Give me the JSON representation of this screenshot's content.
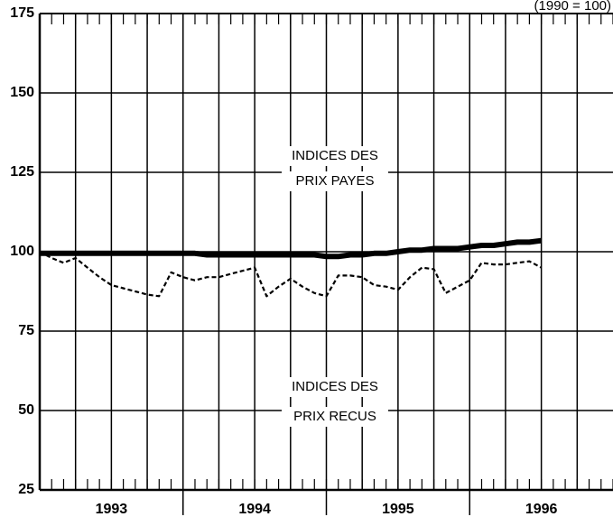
{
  "chart_data": {
    "type": "line",
    "note": "(1990 = 100)",
    "categories": [
      "1993",
      "1994",
      "1995",
      "1996"
    ],
    "x": [
      1993.0,
      1993.083,
      1993.167,
      1993.25,
      1993.333,
      1993.417,
      1993.5,
      1993.583,
      1993.667,
      1993.75,
      1993.833,
      1993.917,
      1994.0,
      1994.083,
      1994.167,
      1994.25,
      1994.333,
      1994.417,
      1994.5,
      1994.583,
      1994.667,
      1994.75,
      1994.833,
      1994.917,
      1995.0,
      1995.083,
      1995.167,
      1995.25,
      1995.333,
      1995.417,
      1995.5,
      1995.583,
      1995.667,
      1995.75,
      1995.833,
      1995.917,
      1996.0,
      1996.083,
      1996.167,
      1996.25,
      1996.333,
      1996.417,
      1996.5
    ],
    "series": [
      {
        "name": "PRIX PAYES",
        "label_lines": [
          "INDICES DES",
          "PRIX PAYES"
        ],
        "color": "#000000",
        "style": "solid",
        "values": [
          99.5,
          99.5,
          99.5,
          99.5,
          99.5,
          99.5,
          99.5,
          99.5,
          99.5,
          99.5,
          99.5,
          99.5,
          99.5,
          99.5,
          99,
          99,
          99,
          99,
          99,
          99,
          99,
          99,
          99,
          99,
          98.5,
          98.5,
          99,
          99,
          99.5,
          99.5,
          100,
          100.5,
          100.5,
          101,
          101,
          101,
          101.5,
          102,
          102,
          102.5,
          103,
          103,
          103.5
        ]
      },
      {
        "name": "PRIX RECUS",
        "label_lines": [
          "INDICES DES",
          "PRIX RECUS"
        ],
        "color": "#000000",
        "style": "dashed",
        "values": [
          100,
          98,
          96.5,
          98,
          95,
          92,
          89.5,
          88.5,
          87.5,
          86.5,
          86,
          93.5,
          92,
          91,
          92,
          92,
          93,
          94,
          95,
          86,
          89,
          91.5,
          89,
          87,
          86,
          92.5,
          92.5,
          92,
          89.5,
          89,
          88,
          92,
          95,
          94.5,
          87,
          89,
          91,
          96.5,
          96,
          96,
          96.5,
          97,
          95
        ]
      }
    ],
    "xlim": [
      1993,
      1997
    ],
    "xticks": [
      1993.25,
      1993.5,
      1993.75,
      1994,
      1994.25,
      1994.5,
      1994.75,
      1995,
      1995.25,
      1995.5,
      1995.75,
      1996,
      1996.25,
      1996.5,
      1996.75
    ],
    "ylim": [
      25,
      175
    ],
    "yticks": [
      25,
      50,
      75,
      100,
      125,
      150,
      175
    ],
    "grid": true
  }
}
